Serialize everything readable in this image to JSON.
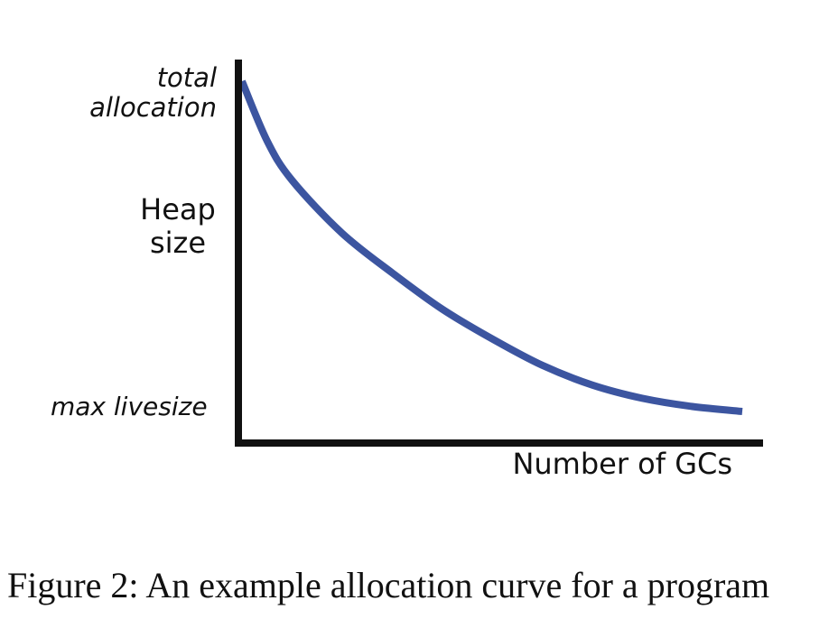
{
  "chart_data": {
    "type": "line",
    "title": "",
    "xlabel": "Number of GCs",
    "ylabel": "Heap\nsize",
    "y_tick_labels": {
      "top": "total\nallocation",
      "bottom": "max livesize"
    },
    "grid": false,
    "legend": "none",
    "xlim": [
      0,
      1
    ],
    "ylim": [
      0,
      1
    ],
    "series": [
      {
        "color": "#3c55a0",
        "x": [
          0.0,
          0.05,
          0.1,
          0.2,
          0.3,
          0.4,
          0.5,
          0.6,
          0.7,
          0.8,
          0.9,
          1.0
        ],
        "y": [
          1.0,
          0.82,
          0.7,
          0.54,
          0.42,
          0.31,
          0.22,
          0.14,
          0.08,
          0.04,
          0.015,
          0.0
        ]
      }
    ]
  },
  "caption": "Figure 2: An example allocation curve for a program"
}
